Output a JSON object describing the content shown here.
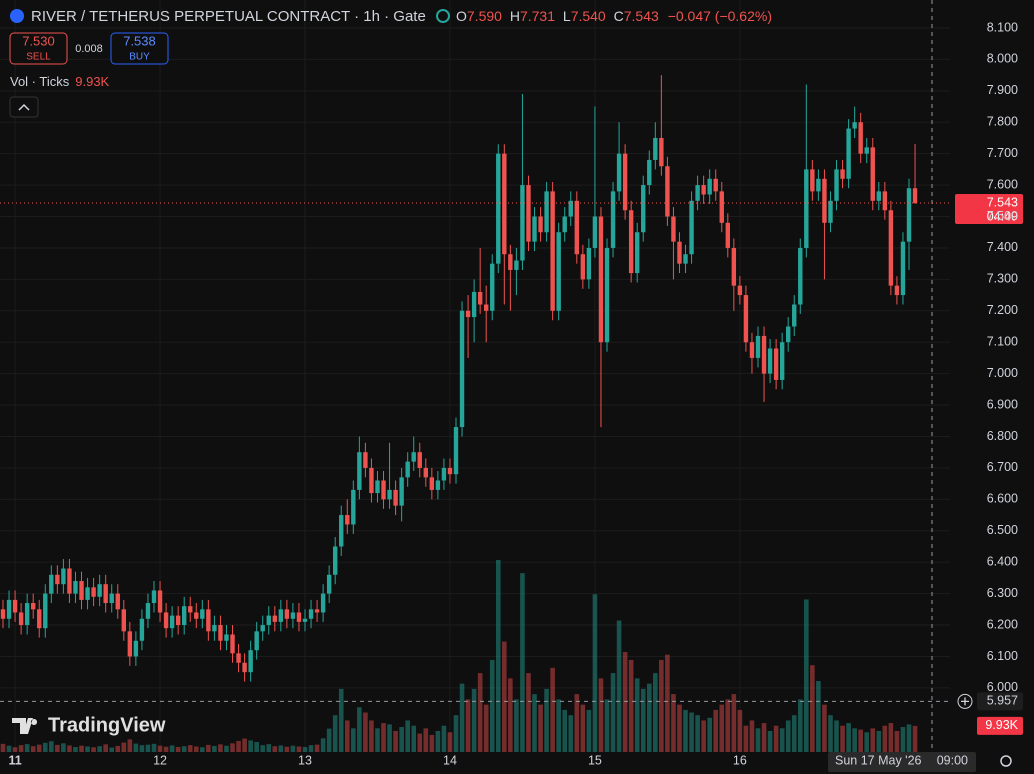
{
  "header": {
    "title": "RIVER / TETHERUS PERPETUAL CONTRACT · 1h · Gate",
    "o_label": "O",
    "o": "7.590",
    "h_label": "H",
    "h": "7.731",
    "l_label": "L",
    "l": "7.540",
    "c_label": "C",
    "c": "7.543",
    "change": "−0.047 (−0.62%)",
    "sell_price": "7.530",
    "sell": "SELL",
    "spread": "0.008",
    "buy_price": "7.538",
    "buy": "BUY",
    "vol_title": "Vol · Ticks",
    "vol_value": "9.93K",
    "logo": "TradingView"
  },
  "chart_data": {
    "type": "candlestick",
    "up_color": "#26a69a",
    "down_color": "#ef5350",
    "open": [
      6.25,
      6.22,
      6.28,
      6.24,
      6.2,
      6.27,
      6.25,
      6.19,
      6.3,
      6.36,
      6.33,
      6.38,
      6.3,
      6.34,
      6.28,
      6.32,
      6.29,
      6.33,
      6.27,
      6.3,
      6.25,
      6.18,
      6.1,
      6.15,
      6.22,
      6.27,
      6.31,
      6.24,
      6.19,
      6.23,
      6.2,
      6.26,
      6.24,
      6.22,
      6.25,
      6.18,
      6.2,
      6.15,
      6.17,
      6.11,
      6.08,
      6.05,
      6.12,
      6.18,
      6.2,
      6.23,
      6.21,
      6.25,
      6.22,
      6.24,
      6.21,
      6.22,
      6.25,
      6.24,
      6.3,
      6.36,
      6.45,
      6.55,
      6.52,
      6.63,
      6.75,
      6.7,
      6.62,
      6.66,
      6.6,
      6.63,
      6.58,
      6.67,
      6.72,
      6.75,
      6.7,
      6.67,
      6.63,
      6.66,
      6.7,
      6.68,
      6.83,
      7.2,
      7.18,
      7.26,
      7.22,
      7.2,
      7.35,
      7.7,
      7.38,
      7.33,
      7.36,
      7.6,
      7.42,
      7.5,
      7.45,
      7.58,
      7.2,
      7.45,
      7.5,
      7.55,
      7.38,
      7.3,
      7.4,
      7.5,
      7.1,
      7.4,
      7.58,
      7.7,
      7.52,
      7.32,
      7.45,
      7.6,
      7.68,
      7.75,
      7.66,
      7.5,
      7.42,
      7.35,
      7.38,
      7.55,
      7.6,
      7.57,
      7.62,
      7.58,
      7.48,
      7.4,
      7.28,
      7.25,
      7.1,
      7.05,
      7.12,
      7.0,
      7.08,
      6.98,
      7.1,
      7.15,
      7.22,
      7.4,
      7.65,
      7.58,
      7.62,
      7.48,
      7.55,
      7.65,
      7.62,
      7.78,
      7.8,
      7.7,
      7.72,
      7.55,
      7.58,
      7.52,
      7.28,
      7.25,
      7.42,
      7.59
    ],
    "high": [
      6.28,
      6.31,
      6.31,
      6.27,
      6.3,
      6.3,
      6.28,
      6.33,
      6.39,
      6.39,
      6.41,
      6.41,
      6.37,
      6.37,
      6.35,
      6.35,
      6.36,
      6.36,
      6.33,
      6.33,
      6.28,
      6.21,
      6.18,
      6.25,
      6.3,
      6.34,
      6.34,
      6.27,
      6.26,
      6.26,
      6.29,
      6.29,
      6.27,
      6.28,
      6.28,
      6.23,
      6.23,
      6.2,
      6.2,
      6.14,
      6.11,
      6.15,
      6.21,
      6.23,
      6.26,
      6.26,
      6.28,
      6.28,
      6.27,
      6.27,
      6.25,
      6.28,
      6.28,
      6.33,
      6.39,
      6.48,
      6.58,
      6.6,
      6.66,
      6.8,
      6.78,
      6.73,
      6.69,
      6.69,
      6.78,
      6.66,
      6.7,
      6.75,
      6.8,
      6.78,
      6.73,
      6.7,
      6.69,
      6.73,
      6.73,
      6.86,
      7.23,
      7.25,
      7.3,
      7.4,
      7.28,
      7.38,
      7.73,
      7.73,
      7.41,
      7.4,
      7.89,
      7.63,
      7.53,
      7.53,
      7.61,
      7.61,
      7.48,
      7.53,
      7.58,
      7.58,
      7.41,
      7.43,
      7.85,
      7.53,
      7.43,
      7.61,
      7.8,
      7.73,
      7.55,
      7.48,
      7.63,
      7.71,
      7.8,
      7.95,
      7.69,
      7.53,
      7.45,
      7.41,
      7.58,
      7.63,
      7.63,
      7.65,
      7.65,
      7.61,
      7.51,
      7.43,
      7.31,
      7.28,
      7.13,
      7.15,
      7.15,
      7.11,
      7.11,
      7.13,
      7.18,
      7.25,
      7.43,
      7.92,
      7.68,
      7.65,
      7.65,
      7.58,
      7.68,
      7.68,
      7.81,
      7.85,
      7.83,
      7.75,
      7.75,
      7.61,
      7.61,
      7.55,
      7.31,
      7.45,
      7.62,
      7.731
    ],
    "low": [
      6.19,
      6.19,
      6.21,
      6.17,
      6.17,
      6.22,
      6.16,
      6.16,
      6.27,
      6.3,
      6.3,
      6.27,
      6.27,
      6.25,
      6.25,
      6.26,
      6.26,
      6.24,
      6.24,
      6.22,
      6.15,
      6.07,
      6.07,
      6.12,
      6.19,
      6.24,
      6.21,
      6.16,
      6.16,
      6.17,
      6.17,
      6.21,
      6.19,
      6.19,
      6.15,
      6.15,
      6.12,
      6.12,
      6.08,
      6.05,
      6.02,
      6.02,
      6.09,
      6.15,
      6.17,
      6.18,
      6.18,
      6.19,
      6.19,
      6.18,
      6.18,
      6.19,
      6.21,
      6.21,
      6.27,
      6.33,
      6.42,
      6.49,
      6.49,
      6.6,
      6.67,
      6.59,
      6.59,
      6.57,
      6.57,
      6.55,
      6.53,
      6.64,
      6.69,
      6.67,
      6.64,
      6.6,
      6.6,
      6.63,
      6.65,
      6.65,
      6.8,
      7.05,
      7.1,
      7.19,
      7.1,
      7.17,
      7.32,
      7.22,
      7.2,
      7.25,
      7.33,
      7.39,
      7.39,
      7.42,
      7.42,
      7.17,
      7.17,
      7.42,
      7.47,
      7.35,
      7.27,
      7.27,
      7.37,
      6.83,
      7.07,
      7.37,
      7.55,
      7.49,
      7.29,
      7.29,
      7.42,
      7.57,
      7.65,
      7.63,
      7.47,
      7.3,
      7.32,
      7.32,
      7.35,
      7.52,
      7.54,
      7.54,
      7.55,
      7.45,
      7.37,
      7.2,
      7.22,
      7.07,
      7.0,
      7.02,
      6.91,
      6.97,
      6.95,
      6.95,
      7.07,
      7.12,
      7.19,
      7.37,
      7.55,
      7.55,
      7.3,
      7.45,
      7.52,
      7.59,
      7.59,
      7.75,
      7.67,
      7.67,
      7.52,
      7.52,
      7.49,
      7.25,
      7.22,
      7.22,
      7.33,
      7.54
    ],
    "close": [
      6.22,
      6.28,
      6.24,
      6.2,
      6.27,
      6.25,
      6.19,
      6.3,
      6.36,
      6.33,
      6.38,
      6.3,
      6.34,
      6.28,
      6.32,
      6.29,
      6.33,
      6.27,
      6.3,
      6.25,
      6.18,
      6.1,
      6.15,
      6.22,
      6.27,
      6.31,
      6.24,
      6.19,
      6.23,
      6.2,
      6.26,
      6.24,
      6.22,
      6.25,
      6.18,
      6.2,
      6.15,
      6.17,
      6.11,
      6.08,
      6.05,
      6.12,
      6.18,
      6.2,
      6.23,
      6.21,
      6.25,
      6.22,
      6.24,
      6.21,
      6.22,
      6.25,
      6.24,
      6.3,
      6.36,
      6.45,
      6.55,
      6.52,
      6.63,
      6.75,
      6.7,
      6.62,
      6.66,
      6.6,
      6.63,
      6.58,
      6.67,
      6.72,
      6.75,
      6.7,
      6.67,
      6.63,
      6.66,
      6.7,
      6.68,
      6.83,
      7.2,
      7.18,
      7.26,
      7.22,
      7.2,
      7.35,
      7.7,
      7.38,
      7.33,
      7.36,
      7.6,
      7.42,
      7.5,
      7.45,
      7.58,
      7.2,
      7.45,
      7.5,
      7.55,
      7.38,
      7.3,
      7.4,
      7.5,
      7.1,
      7.4,
      7.58,
      7.7,
      7.52,
      7.32,
      7.45,
      7.6,
      7.68,
      7.75,
      7.66,
      7.5,
      7.42,
      7.35,
      7.38,
      7.55,
      7.6,
      7.57,
      7.62,
      7.58,
      7.48,
      7.4,
      7.28,
      7.25,
      7.1,
      7.05,
      7.12,
      7.0,
      7.08,
      6.98,
      7.1,
      7.15,
      7.22,
      7.4,
      7.65,
      7.58,
      7.62,
      7.48,
      7.55,
      7.65,
      7.62,
      7.78,
      7.8,
      7.7,
      7.72,
      7.55,
      7.58,
      7.52,
      7.28,
      7.25,
      7.42,
      7.59,
      7.543
    ],
    "volume": [
      3100,
      2400,
      1800,
      2600,
      3000,
      2200,
      2800,
      3500,
      4100,
      2700,
      3300,
      2500,
      1900,
      2400,
      2100,
      1800,
      2200,
      2900,
      1700,
      2300,
      3600,
      4800,
      3200,
      2600,
      2800,
      3100,
      2400,
      2000,
      2500,
      1900,
      2200,
      2600,
      2100,
      1800,
      2700,
      2300,
      2900,
      2400,
      3300,
      4200,
      5100,
      4400,
      3800,
      2600,
      3000,
      2200,
      2500,
      2000,
      2400,
      2100,
      1900,
      2600,
      2800,
      5200,
      8900,
      14000,
      24000,
      12000,
      9000,
      17000,
      15000,
      12000,
      9000,
      11000,
      10500,
      8000,
      9500,
      12000,
      10000,
      7000,
      9000,
      6500,
      8000,
      10000,
      7500,
      14000,
      26000,
      20000,
      24000,
      30000,
      18000,
      35000,
      73000,
      42000,
      28000,
      20000,
      68000,
      30000,
      22000,
      18000,
      24000,
      32000,
      20000,
      16000,
      14000,
      22000,
      18000,
      16000,
      60000,
      28000,
      20000,
      30000,
      50000,
      38000,
      35000,
      28000,
      24000,
      26000,
      30000,
      35000,
      37000,
      22000,
      18000,
      16000,
      15000,
      14000,
      12000,
      13000,
      16000,
      18000,
      20000,
      22000,
      16000,
      10000,
      12000,
      9000,
      11000,
      8000,
      10000,
      9000,
      12000,
      14000,
      20000,
      58000,
      33000,
      27000,
      18000,
      14000,
      12000,
      10000,
      11000,
      9000,
      8500,
      7500,
      9000,
      8000,
      10000,
      11000,
      8000,
      9500,
      10500,
      9930
    ],
    "ylim": [
      5.796,
      8.189
    ],
    "yticks": [
      {
        "value": 6.0,
        "label": "6.000"
      },
      {
        "value": 6.1,
        "label": "6.100"
      },
      {
        "value": 6.2,
        "label": "6.200"
      },
      {
        "value": 6.3,
        "label": "6.300"
      },
      {
        "value": 6.4,
        "label": "6.400"
      },
      {
        "value": 6.5,
        "label": "6.500"
      },
      {
        "value": 6.6,
        "label": "6.600"
      },
      {
        "value": 6.7,
        "label": "6.700"
      },
      {
        "value": 6.8,
        "label": "6.800"
      },
      {
        "value": 6.9,
        "label": "6.900"
      },
      {
        "value": 7.0,
        "label": "7.000"
      },
      {
        "value": 7.1,
        "label": "7.100"
      },
      {
        "value": 7.2,
        "label": "7.200"
      },
      {
        "value": 7.3,
        "label": "7.300"
      },
      {
        "value": 7.4,
        "label": "7.400"
      },
      {
        "value": 7.5,
        "label": "7.500"
      },
      {
        "value": 7.6,
        "label": "7.600"
      },
      {
        "value": 7.7,
        "label": "7.700"
      },
      {
        "value": 7.8,
        "label": "7.800"
      },
      {
        "value": 7.9,
        "label": "7.900"
      },
      {
        "value": 8.0,
        "label": "8.000"
      },
      {
        "value": 8.1,
        "label": "8.100"
      }
    ],
    "xticks": [
      11,
      12,
      13,
      14,
      15,
      16
    ],
    "last_price": {
      "value": 7.543,
      "label": "7.543"
    },
    "countdown": "04:49",
    "crosshair": {
      "price": {
        "value": 5.957,
        "label": "5.957"
      },
      "date": "Sun 17 May '26",
      "time": "09:00"
    },
    "volume_label": "9.93K",
    "grid": true
  }
}
